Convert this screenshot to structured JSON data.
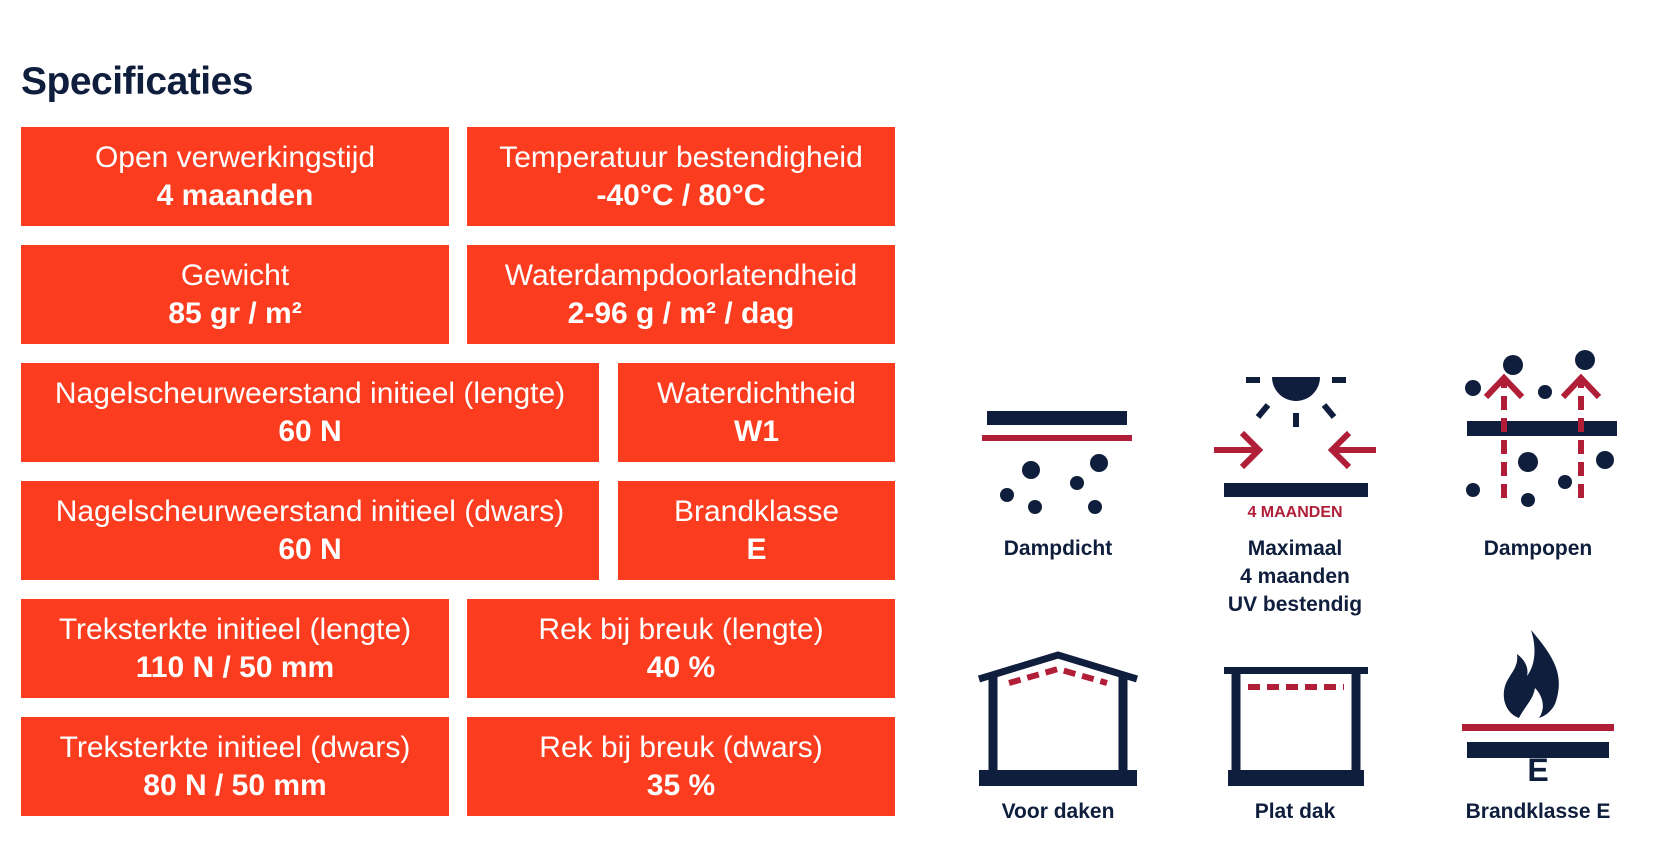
{
  "page": {
    "title": "Specificaties"
  },
  "specs": [
    {
      "label": "Open verwerkingstijd",
      "value": "4 maanden"
    },
    {
      "label": "Temperatuur bestendigheid",
      "value": "-40°C / 80°C"
    },
    {
      "label": "Gewicht",
      "value": "85 gr / m²"
    },
    {
      "label": "Waterdampdoorlatendheid",
      "value": "2-96 g / m² / dag"
    },
    {
      "label": "Nagelscheurweerstand initieel (lengte)",
      "value": "60 N"
    },
    {
      "label": "Waterdichtheid",
      "value": "W1"
    },
    {
      "label": "Nagelscheurweerstand initieel (dwars)",
      "value": "60 N"
    },
    {
      "label": "Brandklasse",
      "value": "E"
    },
    {
      "label": "Treksterkte initieel (lengte)",
      "value": "110 N / 50 mm"
    },
    {
      "label": "Rek bij breuk (lengte)",
      "value": "40 %"
    },
    {
      "label": "Treksterkte initieel (dwars)",
      "value": "80 N / 50 mm"
    },
    {
      "label": "Rek bij breuk (dwars)",
      "value": "35 %"
    }
  ],
  "icons": [
    {
      "name": "dampdicht-icon",
      "caption": "Dampdicht"
    },
    {
      "name": "uv-resistant-icon",
      "badge": "4 MAANDEN",
      "caption_lines": [
        "Maximaal",
        "4 maanden",
        "UV bestendig"
      ]
    },
    {
      "name": "dampopen-icon",
      "caption": "Dampopen"
    },
    {
      "name": "pitched-roof-icon",
      "caption": "Voor daken"
    },
    {
      "name": "flat-roof-icon",
      "caption": "Plat dak"
    },
    {
      "name": "fire-class-icon",
      "badge": "E",
      "caption": "Brandklasse E"
    }
  ],
  "colors": {
    "accent": "#fc3c1f",
    "navy": "#0f1e3c",
    "red": "#b01e37",
    "text_on_accent": "#ffffff"
  }
}
